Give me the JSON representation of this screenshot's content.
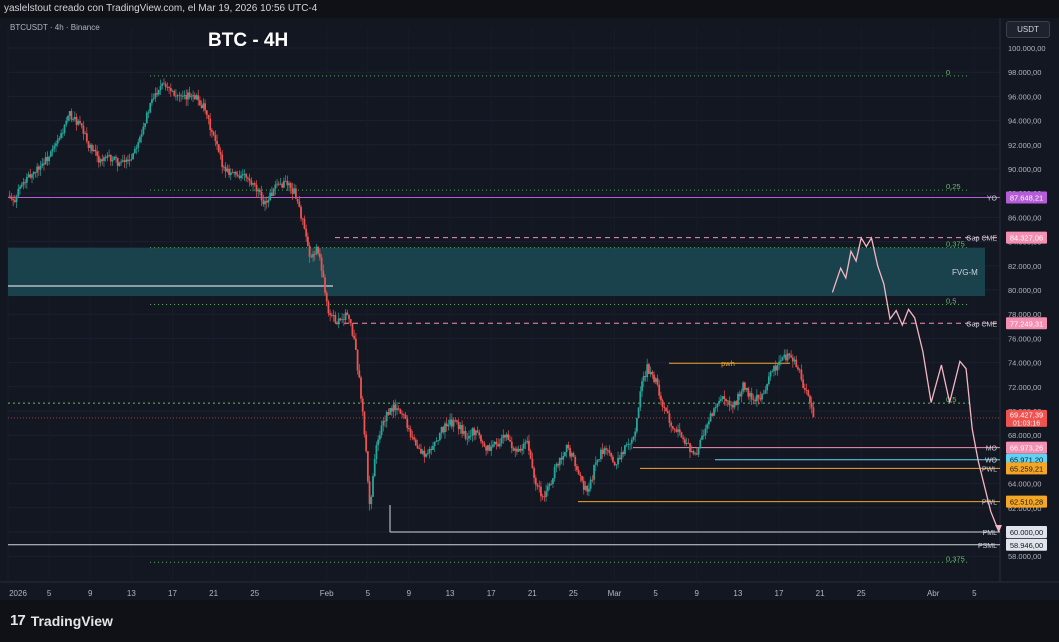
{
  "header": {
    "attribution": "yaslelstout creado con TradingView.com, el Mar 19, 2026 10:56 UTC-4"
  },
  "symbol_line": "BTCUSDT · 4h · Binance",
  "chart_title": "BTC - 4H",
  "currency_button": "USDT",
  "footer": {
    "brand": "TradingView"
  },
  "colors": {
    "background": "#131722",
    "up": "#26a69a",
    "down": "#ef5350",
    "fvg": "#1b4a55",
    "projection": "#f4b6c2",
    "yo": "#b45dd6",
    "gap": "#f48fb1",
    "fib": "#4caf50",
    "pwl": "#f5a623",
    "wo": "#5fd3f3"
  },
  "chart_data": {
    "type": "candlestick",
    "title": "BTC - 4H",
    "ylim": [
      56500,
      101000
    ],
    "y_ticks": [
      "58.000,00",
      "60.000,00",
      "62.000,00",
      "64.000,00",
      "66.000,00",
      "68.000,00",
      "70.000,00",
      "72.000,00",
      "74.000,00",
      "76.000,00",
      "78.000,00",
      "80.000,00",
      "82.000,00",
      "84.000,00",
      "86.000,00",
      "88.000,00",
      "90.000,00",
      "92.000,00",
      "94.000,00",
      "96.000,00",
      "98.000,00",
      "100.000,00"
    ],
    "x_ticks": [
      "2026",
      "5",
      "9",
      "13",
      "17",
      "21",
      "25",
      "Feb",
      "5",
      "9",
      "13",
      "17",
      "21",
      "25",
      "Mar",
      "5",
      "9",
      "13",
      "17",
      "21",
      "25",
      "Abr",
      "5"
    ],
    "x_tick_days": [
      0,
      4,
      8,
      12,
      16,
      20,
      24,
      31,
      35,
      39,
      43,
      47,
      51,
      55,
      59,
      63,
      67,
      71,
      75,
      79,
      83,
      90,
      94
    ],
    "price_path": [
      [
        0,
        87800
      ],
      [
        0.5,
        87200
      ],
      [
        1,
        88300
      ],
      [
        2,
        89300
      ],
      [
        3,
        90200
      ],
      [
        4,
        91000
      ],
      [
        5,
        92500
      ],
      [
        6,
        94500
      ],
      [
        7,
        93600
      ],
      [
        8,
        91700
      ],
      [
        9,
        90700
      ],
      [
        10,
        90900
      ],
      [
        11,
        90400
      ],
      [
        12,
        91000
      ],
      [
        13,
        93200
      ],
      [
        14,
        95600
      ],
      [
        15,
        97300
      ],
      [
        16,
        96500
      ],
      [
        17,
        95700
      ],
      [
        18,
        96300
      ],
      [
        19,
        95100
      ],
      [
        20,
        92600
      ],
      [
        21,
        90100
      ],
      [
        22,
        89600
      ],
      [
        23,
        89400
      ],
      [
        24,
        88400
      ],
      [
        25,
        87200
      ],
      [
        26,
        88400
      ],
      [
        27,
        89000
      ],
      [
        28,
        87900
      ],
      [
        28.8,
        85200
      ],
      [
        29.4,
        82300
      ],
      [
        30,
        83600
      ],
      [
        30.6,
        81500
      ],
      [
        31.2,
        78000
      ],
      [
        32,
        77500
      ],
      [
        33,
        78000
      ],
      [
        33.6,
        76200
      ],
      [
        34.2,
        72500
      ],
      [
        34.8,
        67000
      ],
      [
        35.2,
        61800
      ],
      [
        35.7,
        66500
      ],
      [
        36.5,
        69200
      ],
      [
        37.5,
        70300
      ],
      [
        38.5,
        69700
      ],
      [
        39.2,
        68100
      ],
      [
        40,
        66700
      ],
      [
        40.8,
        66300
      ],
      [
        41.5,
        67400
      ],
      [
        42.5,
        68800
      ],
      [
        43.5,
        69100
      ],
      [
        44.5,
        68000
      ],
      [
        45.5,
        68400
      ],
      [
        46.5,
        66900
      ],
      [
        47.5,
        67300
      ],
      [
        48.5,
        67900
      ],
      [
        49.5,
        66400
      ],
      [
        50.5,
        67400
      ],
      [
        51.3,
        64300
      ],
      [
        52,
        62900
      ],
      [
        52.6,
        63600
      ],
      [
        53.3,
        65400
      ],
      [
        54.3,
        67000
      ],
      [
        55,
        66000
      ],
      [
        55.8,
        64000
      ],
      [
        56.5,
        63300
      ],
      [
        57.2,
        66000
      ],
      [
        58,
        66800
      ],
      [
        59,
        65700
      ],
      [
        60,
        66900
      ],
      [
        61,
        68300
      ],
      [
        61.6,
        72000
      ],
      [
        62.2,
        73600
      ],
      [
        63,
        72500
      ],
      [
        64,
        69700
      ],
      [
        65,
        68500
      ],
      [
        66,
        67400
      ],
      [
        66.8,
        66100
      ],
      [
        67.5,
        67800
      ],
      [
        68.5,
        69800
      ],
      [
        69.5,
        71000
      ],
      [
        70.5,
        70100
      ],
      [
        71.5,
        72100
      ],
      [
        72.5,
        70800
      ],
      [
        73.5,
        71500
      ],
      [
        74.3,
        73300
      ],
      [
        75.3,
        74300
      ],
      [
        76,
        74600
      ],
      [
        76.8,
        73800
      ],
      [
        77.4,
        71800
      ],
      [
        78,
        70900
      ],
      [
        78.4,
        69400
      ]
    ],
    "projection_path": [
      [
        80.2,
        79800
      ],
      [
        81,
        81800
      ],
      [
        81.5,
        81000
      ],
      [
        82,
        83200
      ],
      [
        82.5,
        82400
      ],
      [
        83,
        84300
      ],
      [
        83.5,
        83600
      ],
      [
        84,
        84300
      ],
      [
        84.6,
        82000
      ],
      [
        85.2,
        80500
      ],
      [
        85.8,
        77600
      ],
      [
        86.4,
        78300
      ],
      [
        87,
        77100
      ],
      [
        87.6,
        78400
      ],
      [
        88.2,
        77700
      ],
      [
        89,
        74900
      ],
      [
        89.8,
        70700
      ],
      [
        90.8,
        73800
      ],
      [
        91.6,
        70700
      ],
      [
        92.6,
        74100
      ],
      [
        93.2,
        73500
      ],
      [
        93.8,
        68500
      ],
      [
        94.4,
        65800
      ],
      [
        95.6,
        61700
      ],
      [
        96.4,
        60000
      ]
    ],
    "fvg_zone": {
      "label": "FVG-M",
      "low": 79500,
      "high": 83500
    },
    "horizontal_levels": [
      {
        "label": "0",
        "value": 97700,
        "style": "fib"
      },
      {
        "label": "0,25",
        "value": 88250,
        "style": "fib"
      },
      {
        "label": "YO",
        "value": 87648.21,
        "price_label": "87.648,21",
        "style": "yo"
      },
      {
        "label": "Gap CME",
        "value": 84327.06,
        "price_label": "84.327,06",
        "style": "gap"
      },
      {
        "label": "0,375",
        "value": 83500,
        "style": "fib"
      },
      {
        "label": "0,5",
        "value": 78800,
        "style": "fib"
      },
      {
        "label": "Gap CME",
        "value": 77249.31,
        "price_label": "77.249,31",
        "style": "gap"
      },
      {
        "label": "0,5",
        "value": 70650,
        "style": "fib"
      },
      {
        "label": "MO",
        "value": 66973.26,
        "price_label": "66.973,26",
        "style": "mo"
      },
      {
        "label": "WO",
        "value": 65971.2,
        "price_label": "65.971,20",
        "style": "wo"
      },
      {
        "label": "PWL",
        "value": 65259.21,
        "price_label": "65.259,21",
        "style": "pwl"
      },
      {
        "label": "PWL",
        "value": 62510.28,
        "price_label": "62.510,28",
        "style": "pwl"
      },
      {
        "label": "PML",
        "value": 60000.0,
        "price_label": "60.000,00",
        "style": "pml"
      },
      {
        "label": "PSML",
        "value": 58946.0,
        "price_label": "58.946,00",
        "style": "psml"
      },
      {
        "label": "0,375",
        "value": 57500,
        "style": "fib"
      }
    ],
    "pwh": {
      "label": "pwh",
      "value": 73950
    },
    "current_price": {
      "value": 69427.39,
      "price_label": "69.427,39",
      "countdown": "01:03:16"
    },
    "annotations": [
      "FVG-M",
      "pwh"
    ]
  }
}
